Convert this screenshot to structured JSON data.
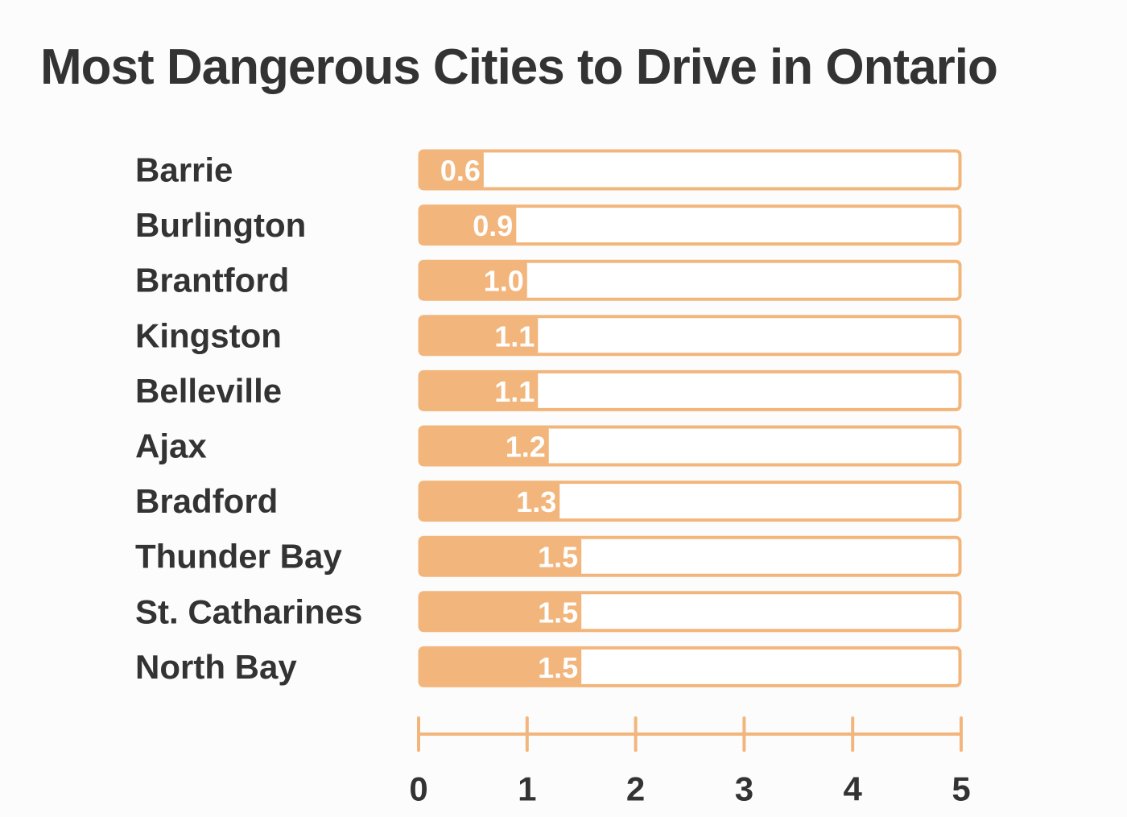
{
  "colors": {
    "accent": "#f2b67c",
    "text": "#333333",
    "background": "#fcfcfc"
  },
  "chart_data": {
    "type": "bar",
    "orientation": "horizontal",
    "title": "Most Dangerous Cities to Drive in Ontario",
    "xlabel": "",
    "ylabel": "",
    "categories": [
      "Barrie",
      "Burlington",
      "Brantford",
      "Kingston",
      "Belleville",
      "Ajax",
      "Bradford",
      "Thunder Bay",
      "St. Catharines",
      "North Bay"
    ],
    "values": [
      0.6,
      0.9,
      1.0,
      1.1,
      1.1,
      1.2,
      1.3,
      1.5,
      1.5,
      1.5
    ],
    "value_labels": [
      "0.6",
      "0.9",
      "1.0",
      "1.1",
      "1.1",
      "1.2",
      "1.3",
      "1.5",
      "1.5",
      "1.5"
    ],
    "xlim": [
      0,
      5
    ],
    "xticks": [
      0,
      1,
      2,
      3,
      4,
      5
    ],
    "xtick_labels": [
      "0",
      "1",
      "2",
      "3",
      "4",
      "5"
    ],
    "grid": false,
    "legend": "none"
  }
}
